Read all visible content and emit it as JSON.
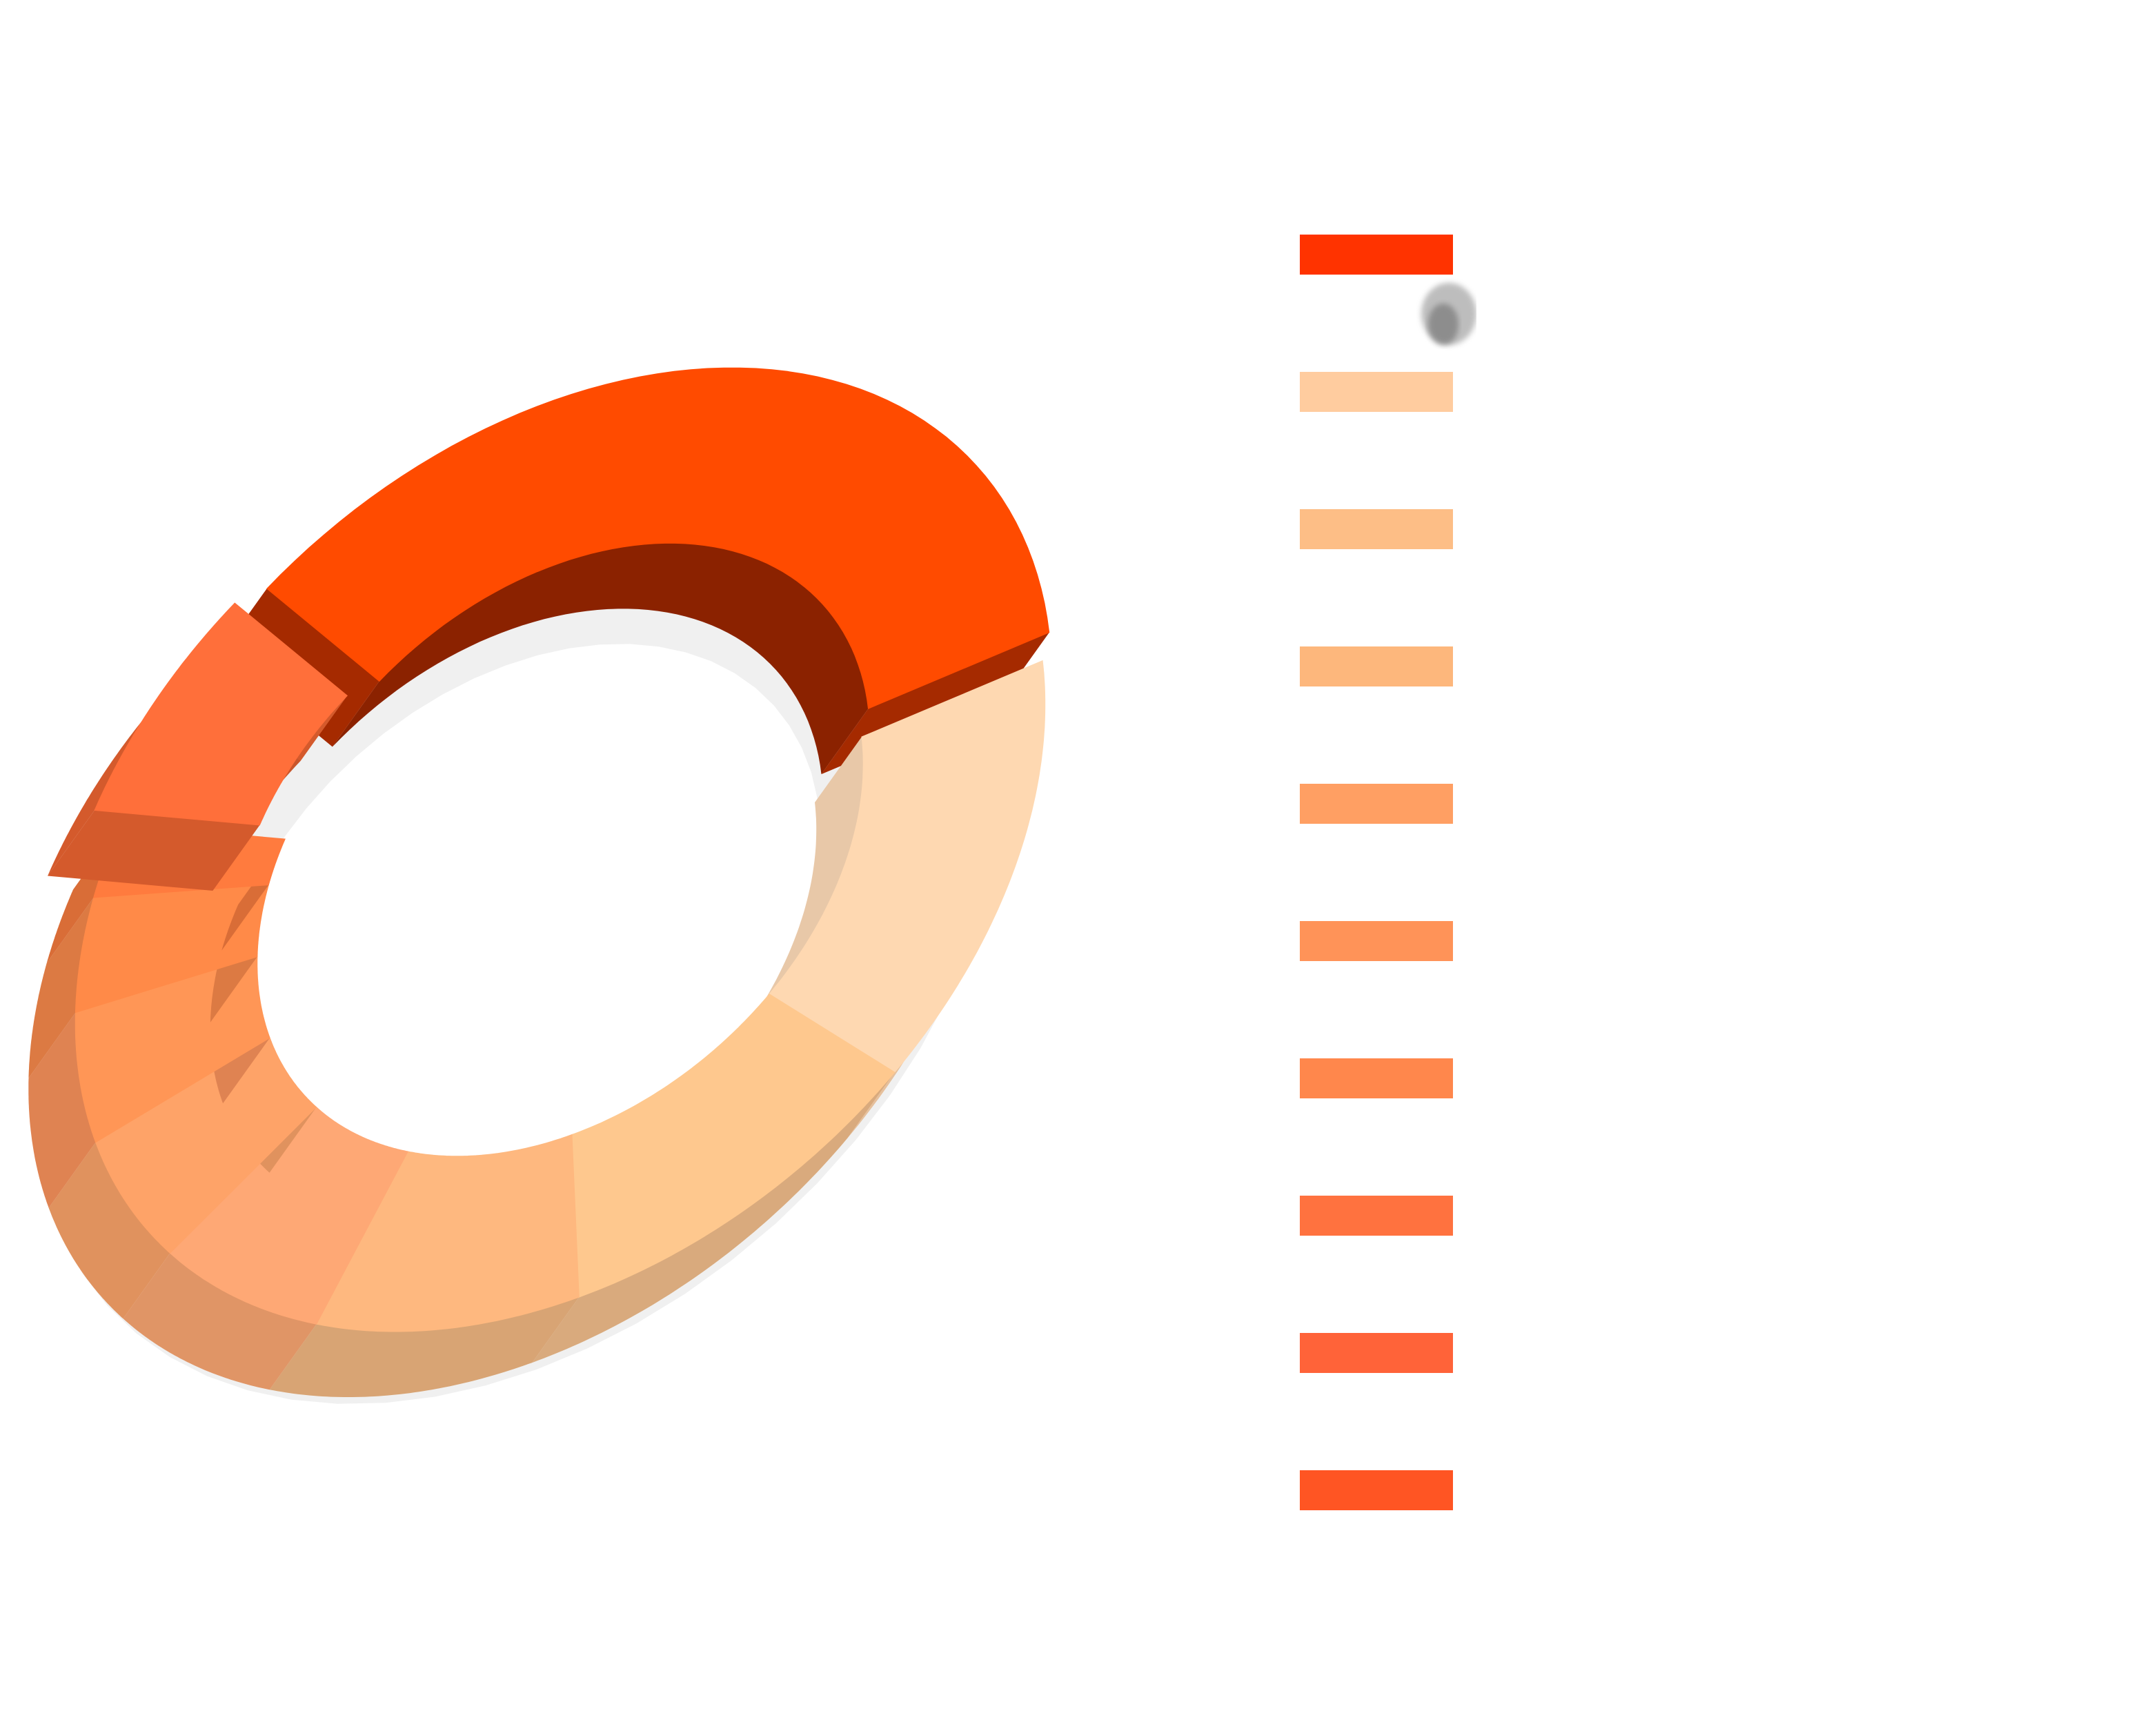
{
  "chart_data": {
    "type": "pie",
    "subtype": "3d-donut",
    "title": "",
    "legend_position": "right",
    "exploded_slices": [
      0,
      9
    ],
    "slices": [
      {
        "value": 34.0,
        "color": "#ff4b00",
        "side_color": "#a52a00",
        "inner_color": "#8b2200",
        "legend_color": "#ff3300",
        "label": ""
      },
      {
        "value": 14.5,
        "color": "#fed8b1",
        "side_color": "#e6c09c",
        "inner_color": "#e8c8a8",
        "legend_color": "#ffcc9f",
        "label": ""
      },
      {
        "value": 11.5,
        "color": "#fec88e",
        "side_color": "#d9aa7d",
        "inner_color": "#e8b888",
        "legend_color": "#fdbe86",
        "label": ""
      },
      {
        "value": 9.0,
        "color": "#feb87f",
        "side_color": "#d8a474",
        "inner_color": "#e0a574",
        "legend_color": "#fdb77c",
        "label": ""
      },
      {
        "value": 6.5,
        "color": "#fea875",
        "side_color": "#e09566",
        "inner_color": "#e39a66",
        "legend_color": "#ff9f63",
        "label": ""
      },
      {
        "value": 5.5,
        "color": "#fea368",
        "side_color": "#e0925e",
        "inner_color": "#e0925e",
        "legend_color": "#ff9358",
        "label": ""
      },
      {
        "value": 5.0,
        "color": "#ff9656",
        "side_color": "#df8352",
        "inner_color": "#df8352",
        "legend_color": "#ff874c",
        "label": ""
      },
      {
        "value": 4.0,
        "color": "#ff8a48",
        "side_color": "#dc7a43",
        "inner_color": "#dc7a43",
        "legend_color": "#ff723f",
        "label": ""
      },
      {
        "value": 2.5,
        "color": "#ff7b3e",
        "side_color": "#d96d37",
        "inner_color": "#d96d37",
        "legend_color": "#ff6339",
        "label": ""
      },
      {
        "value": 7.5,
        "color": "#ff6f3a",
        "side_color": "#d45a2c",
        "inner_color": "#c9552a",
        "legend_color": "#ff5523",
        "label": ""
      }
    ]
  }
}
